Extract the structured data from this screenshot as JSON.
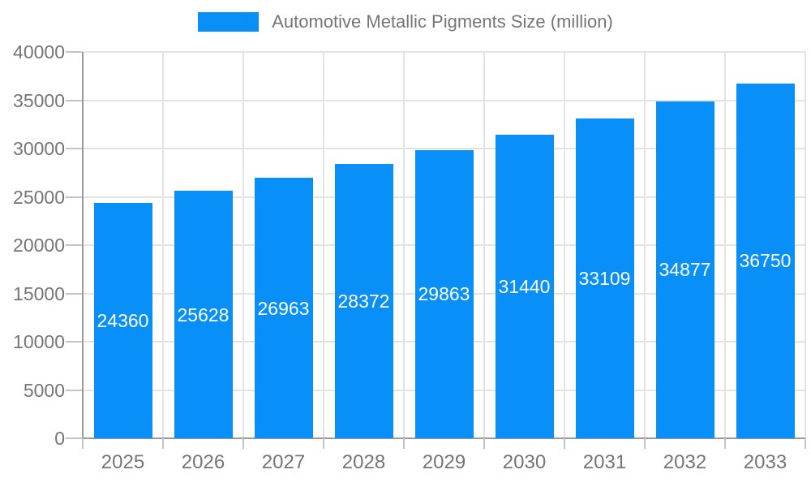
{
  "legend": {
    "label": "Automotive Metallic Pigments Size (million)"
  },
  "chart_data": {
    "type": "bar",
    "title": "Automotive Metallic Pigments Size (million)",
    "categories": [
      "2025",
      "2026",
      "2027",
      "2028",
      "2029",
      "2030",
      "2031",
      "2032",
      "2033"
    ],
    "values": [
      24360,
      25628,
      26963,
      28372,
      29863,
      31440,
      33109,
      34877,
      36750
    ],
    "series": [
      {
        "name": "Automotive Metallic Pigments Size (million)",
        "values": [
          24360,
          25628,
          26963,
          28372,
          29863,
          31440,
          33109,
          34877,
          36750
        ]
      }
    ],
    "xlabel": "",
    "ylabel": "",
    "ylim": [
      0,
      40000
    ],
    "ytick_step": 5000,
    "y_ticks": [
      "0",
      "5000",
      "10000",
      "15000",
      "20000",
      "25000",
      "30000",
      "35000",
      "40000"
    ],
    "grid": true,
    "legend_position": "top-center",
    "value_labels": "inside-middle",
    "colors": {
      "bar": "#0990f8",
      "axis": "#999999",
      "grid": "#e3e3e3",
      "tick": "#c4c4c4",
      "text": "#757575",
      "value_label": "#ffffff",
      "background": "#ffffff"
    }
  }
}
